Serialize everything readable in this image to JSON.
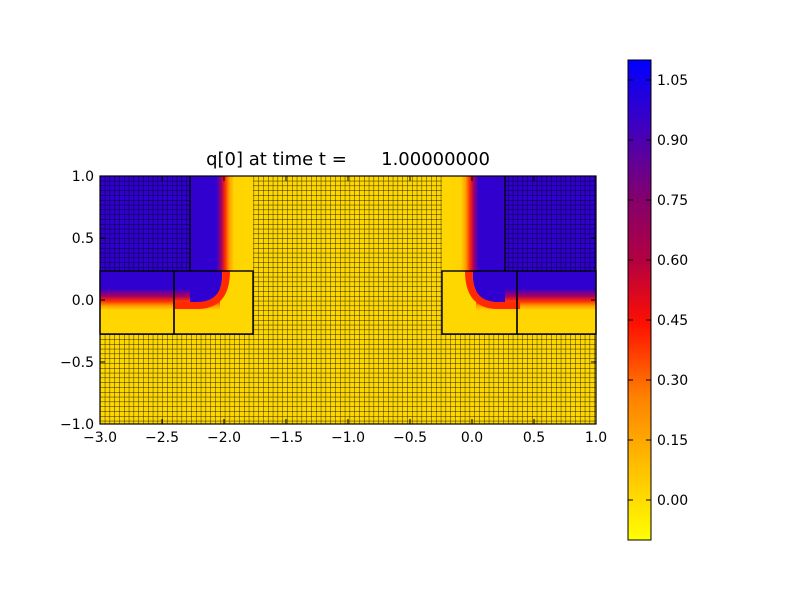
{
  "chart_data": {
    "type": "heatmap",
    "title": "q[0] at time t =      1.00000000",
    "xlabel": "",
    "ylabel": "",
    "xlim": [
      -3.0,
      1.0
    ],
    "ylim": [
      -1.0,
      1.0
    ],
    "x_ticks": [
      -3.0,
      -2.5,
      -2.0,
      -1.5,
      -1.0,
      -0.5,
      0.0,
      0.5,
      1.0
    ],
    "x_tick_labels": [
      "−3.0",
      "−2.5",
      "−2.0",
      "−1.5",
      "−1.0",
      "−0.5",
      "0.0",
      "0.5",
      "1.0"
    ],
    "y_ticks": [
      -1.0,
      -0.5,
      0.0,
      0.5,
      1.0
    ],
    "y_tick_labels": [
      "−1.0",
      "−0.5",
      "0.0",
      "0.5",
      "1.0"
    ],
    "colormap": [
      "#ffff00",
      "#ffd700",
      "#ff6a00",
      "#ff0000",
      "#8b0068",
      "#5a00c8",
      "#0000ff"
    ],
    "color_range": [
      -0.1,
      1.1
    ],
    "colorbar_ticks": [
      0.0,
      0.15,
      0.3,
      0.45,
      0.6,
      0.75,
      0.9,
      1.05
    ],
    "colorbar_tick_labels": [
      "0.00",
      "0.15",
      "0.30",
      "0.45",
      "0.60",
      "0.75",
      "0.90",
      "1.05"
    ],
    "regions": [
      {
        "name": "left-upper-dark",
        "value": 1.0
      },
      {
        "name": "left-vertical-channel",
        "value": 1.0
      },
      {
        "name": "left-horizontal-channel",
        "value": 1.0
      },
      {
        "name": "middle",
        "value": 0.0
      },
      {
        "name": "right-vertical-channel",
        "value": 1.0
      },
      {
        "name": "right-horizontal-channel",
        "value": 1.0
      },
      {
        "name": "right-upper-dark",
        "value": 1.0
      },
      {
        "name": "bottom",
        "value": 0.0
      }
    ],
    "grid": "fine mesh lines over the whole domain"
  }
}
